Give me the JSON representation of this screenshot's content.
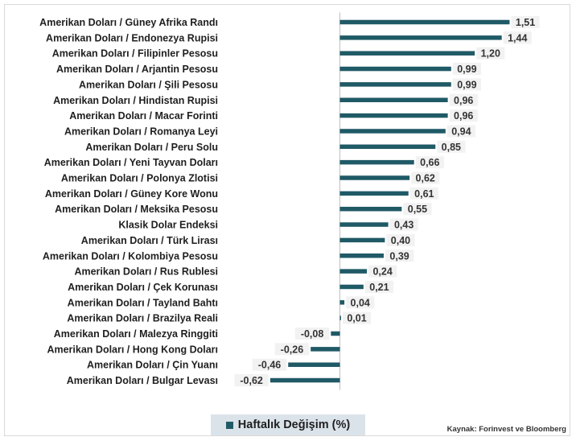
{
  "chart_data": {
    "type": "bar",
    "orientation": "horizontal",
    "categories": [
      "Amerikan Doları / Güney Afrika Randı",
      "Amerikan Doları / Endonezya Rupisi",
      "Amerikan Doları / Filipinler Pesosu",
      "Amerikan Doları / Arjantin Pesosu",
      "Amerikan Doları / Şili Pesosu",
      "Amerikan Doları / Hindistan Rupisi",
      "Amerikan Doları / Macar Forinti",
      "Amerikan Doları / Romanya Leyi",
      "Amerikan Doları / Peru Solu",
      "Amerikan Doları / Yeni Tayvan Doları",
      "Amerikan Doları / Polonya Zlotisi",
      "Amerikan Doları / Güney Kore Wonu",
      "Amerikan Doları / Meksika Pesosu",
      "Klasik Dolar Endeksi",
      "Amerikan Doları / Türk Lirası",
      "Amerikan Doları / Kolombiya Pesosu",
      "Amerikan Doları / Rus Rublesi",
      "Amerikan Doları / Çek Korunası",
      "Amerikan Doları / Tayland Bahtı",
      "Amerikan Doları / Brazilya Reali",
      "Amerikan Doları / Malezya Ringgiti",
      "Amerikan Doları / Hong Kong Doları",
      "Amerikan Doları / Çin Yuanı",
      "Amerikan Doları / Bulgar Levası"
    ],
    "values": [
      1.51,
      1.44,
      1.2,
      0.99,
      0.99,
      0.96,
      0.96,
      0.94,
      0.85,
      0.66,
      0.62,
      0.61,
      0.55,
      0.43,
      0.4,
      0.39,
      0.24,
      0.21,
      0.04,
      0.01,
      -0.08,
      -0.26,
      -0.46,
      -0.62
    ],
    "value_labels": [
      "1,51",
      "1,44",
      "1,20",
      "0,99",
      "0,99",
      "0,96",
      "0,96",
      "0,94",
      "0,85",
      "0,66",
      "0,62",
      "0,61",
      "0,55",
      "0,43",
      "0,40",
      "0,39",
      "0,24",
      "0,21",
      "0,04",
      "0,01",
      "-0,08",
      "-0,26",
      "-0,46",
      "-0,62"
    ],
    "series": [
      {
        "name": "Haftalık Değişim (%)"
      }
    ],
    "xlim": [
      -0.78,
      1.65
    ],
    "grid": false,
    "legend_position": "bottom",
    "colors": {
      "bar": "#1f5a66",
      "label_bg": "#f2f2f2",
      "axis": "#bfbfbf"
    }
  },
  "source_note": "Kaynak: Forinvest ve Bloomberg"
}
